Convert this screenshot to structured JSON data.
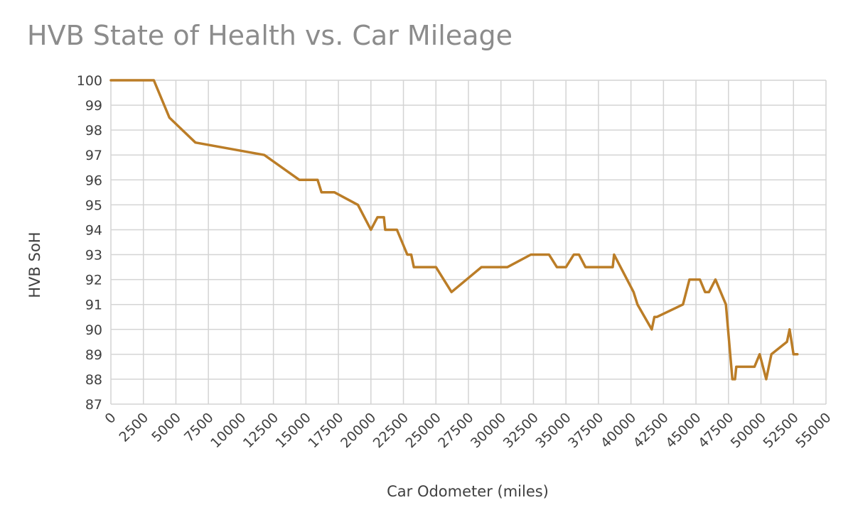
{
  "chart_data": {
    "type": "line",
    "title": "HVB State of Health vs. Car Mileage",
    "xlabel": "Car Odometer (miles)",
    "ylabel": "HVB SoH",
    "xlim": [
      0,
      55000
    ],
    "ylim": [
      87,
      100
    ],
    "x_ticks": [
      0,
      2500,
      5000,
      7500,
      10000,
      12500,
      15000,
      17500,
      20000,
      22500,
      25000,
      27500,
      30000,
      32500,
      35000,
      37500,
      40000,
      42500,
      45000,
      47500,
      50000,
      52500,
      55000
    ],
    "y_ticks": [
      87,
      88,
      89,
      90,
      91,
      92,
      93,
      94,
      95,
      96,
      97,
      98,
      99,
      100
    ],
    "grid": true,
    "legend": "none",
    "line_color": "#bb7d27",
    "series": [
      {
        "x": [
          0,
          3300,
          4500,
          6500,
          11800,
          14500,
          15900,
          16200,
          17200,
          19000,
          20000,
          20500,
          21000,
          21100,
          22000,
          22800,
          23100,
          23300,
          25000,
          26200,
          28500,
          30500,
          32300,
          33700,
          34300,
          35000,
          35600,
          36000,
          36500,
          38600,
          38700,
          40200,
          40500,
          41600,
          41800,
          42000,
          44000,
          44500,
          45300,
          45700,
          46000,
          46500,
          47300,
          47800,
          48000,
          48100,
          49500,
          49900,
          50400,
          50800,
          52000,
          52200,
          52500,
          52800
        ],
        "y": [
          100,
          100,
          98.5,
          97.5,
          97,
          96,
          96,
          95.5,
          95.5,
          95,
          94,
          94.5,
          94.5,
          94,
          94,
          93,
          93,
          92.5,
          92.5,
          91.5,
          92.5,
          92.5,
          93,
          93,
          92.5,
          92.5,
          93,
          93,
          92.5,
          92.5,
          93,
          91.5,
          91,
          90,
          90.5,
          90.5,
          91,
          92,
          92,
          91.5,
          91.5,
          92,
          91,
          88,
          88,
          88.5,
          88.5,
          89,
          88,
          89,
          89.5,
          90,
          89,
          89
        ]
      }
    ]
  }
}
